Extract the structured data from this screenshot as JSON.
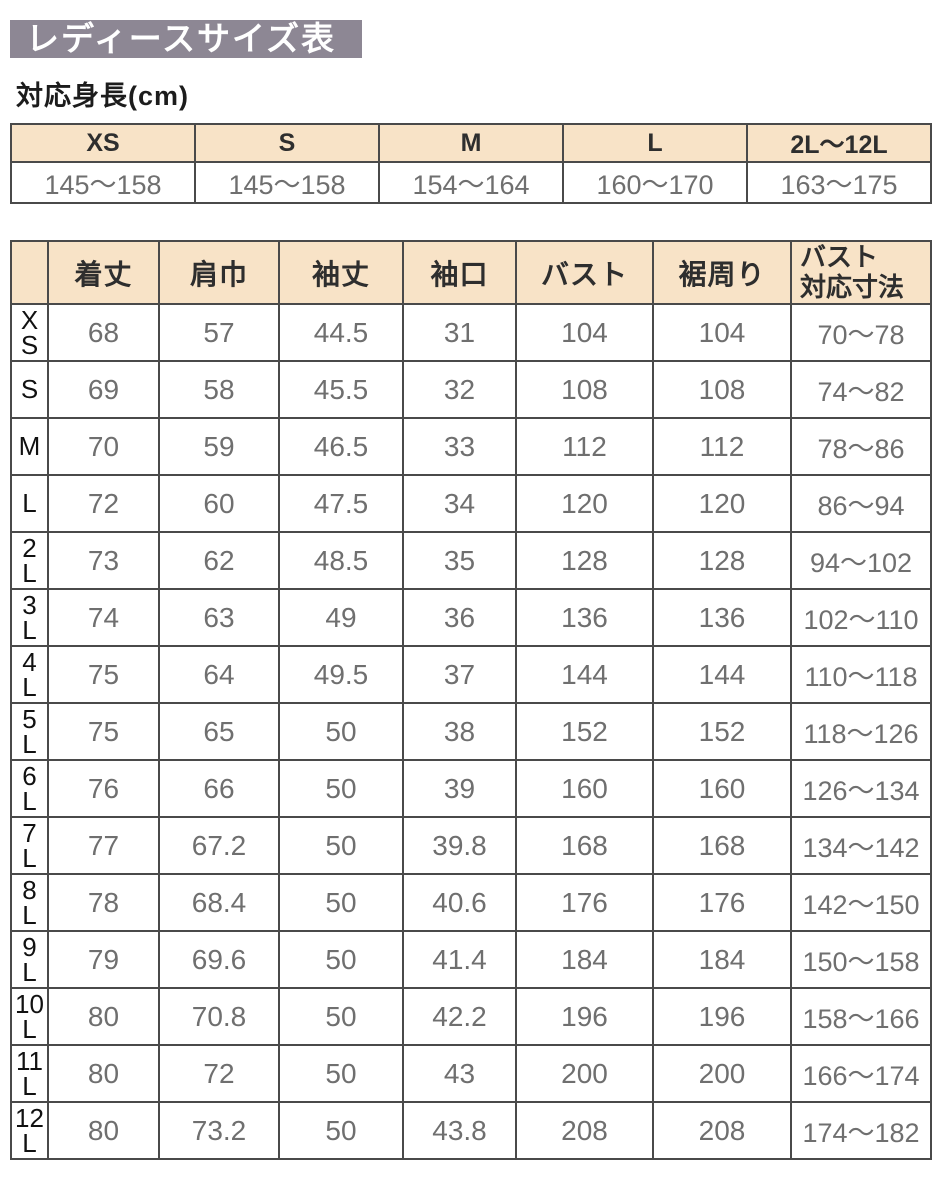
{
  "page": {
    "title": "レディースサイズ表",
    "subtitle": "対応身長(cm)"
  },
  "colors": {
    "title_bar_bg": "#8d8794",
    "header_fill": "#f8e3c7",
    "border": "#4a4a4a",
    "value_text": "#6f6f6f"
  },
  "height_table": {
    "columns": [
      "XS",
      "S",
      "M",
      "L",
      "2L～12L"
    ],
    "values": [
      "145～158",
      "145～158",
      "154～164",
      "160～170",
      "163～175"
    ]
  },
  "size_table": {
    "columns": [
      "着丈",
      "肩巾",
      "袖丈",
      "袖口",
      "バスト",
      "裾周り",
      "バスト\n対応寸法"
    ],
    "rows": [
      {
        "size": "XS",
        "values": [
          "68",
          "57",
          "44.5",
          "31",
          "104",
          "104",
          "70～78"
        ]
      },
      {
        "size": "S",
        "values": [
          "69",
          "58",
          "45.5",
          "32",
          "108",
          "108",
          "74～82"
        ]
      },
      {
        "size": "M",
        "values": [
          "70",
          "59",
          "46.5",
          "33",
          "112",
          "112",
          "78～86"
        ]
      },
      {
        "size": "L",
        "values": [
          "72",
          "60",
          "47.5",
          "34",
          "120",
          "120",
          "86～94"
        ]
      },
      {
        "size": "2L",
        "values": [
          "73",
          "62",
          "48.5",
          "35",
          "128",
          "128",
          "94～102"
        ]
      },
      {
        "size": "3L",
        "values": [
          "74",
          "63",
          "49",
          "36",
          "136",
          "136",
          "102～110"
        ]
      },
      {
        "size": "4L",
        "values": [
          "75",
          "64",
          "49.5",
          "37",
          "144",
          "144",
          "110～118"
        ]
      },
      {
        "size": "5L",
        "values": [
          "75",
          "65",
          "50",
          "38",
          "152",
          "152",
          "118～126"
        ]
      },
      {
        "size": "6L",
        "values": [
          "76",
          "66",
          "50",
          "39",
          "160",
          "160",
          "126～134"
        ]
      },
      {
        "size": "7L",
        "values": [
          "77",
          "67.2",
          "50",
          "39.8",
          "168",
          "168",
          "134～142"
        ]
      },
      {
        "size": "8L",
        "values": [
          "78",
          "68.4",
          "50",
          "40.6",
          "176",
          "176",
          "142～150"
        ]
      },
      {
        "size": "9L",
        "values": [
          "79",
          "69.6",
          "50",
          "41.4",
          "184",
          "184",
          "150～158"
        ]
      },
      {
        "size": "10L",
        "values": [
          "80",
          "70.8",
          "50",
          "42.2",
          "196",
          "196",
          "158～166"
        ]
      },
      {
        "size": "11L",
        "values": [
          "80",
          "72",
          "50",
          "43",
          "200",
          "200",
          "166～174"
        ]
      },
      {
        "size": "12L",
        "values": [
          "80",
          "73.2",
          "50",
          "43.8",
          "208",
          "208",
          "174～182"
        ]
      }
    ]
  }
}
